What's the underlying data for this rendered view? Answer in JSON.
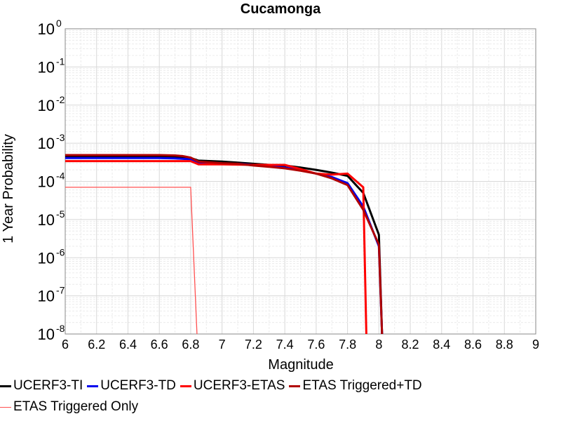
{
  "chart_data": {
    "type": "line",
    "title": "Cucamonga",
    "xlabel": "Magnitude",
    "ylabel": "1 Year Probability",
    "xlim": [
      6,
      9
    ],
    "ylim": [
      1e-08,
      1
    ],
    "yscale": "log",
    "grid": true,
    "legend_position": "bottom",
    "x_ticks": [
      "6",
      "6.2",
      "6.4",
      "6.6",
      "6.8",
      "7",
      "7.2",
      "7.4",
      "7.6",
      "7.8",
      "8",
      "8.2",
      "8.4",
      "8.6",
      "8.8",
      "9"
    ],
    "y_ticks": [
      {
        "base": "10",
        "exp": "0"
      },
      {
        "base": "10",
        "exp": "-1"
      },
      {
        "base": "10",
        "exp": "-2"
      },
      {
        "base": "10",
        "exp": "-3"
      },
      {
        "base": "10",
        "exp": "-4"
      },
      {
        "base": "10",
        "exp": "-5"
      },
      {
        "base": "10",
        "exp": "-6"
      },
      {
        "base": "10",
        "exp": "-7"
      },
      {
        "base": "10",
        "exp": "-8"
      }
    ],
    "series": [
      {
        "name": "UCERF3-TI",
        "color": "#000000",
        "width": 3,
        "x": [
          6.0,
          6.75,
          6.8,
          6.85,
          7.0,
          7.1,
          7.2,
          7.3,
          7.4,
          7.5,
          7.6,
          7.7,
          7.8,
          7.9,
          8.0,
          8.02
        ],
        "y": [
          0.00044,
          0.00044,
          0.00041,
          0.00035,
          0.00033,
          0.00031,
          0.00029,
          0.00027,
          0.00026,
          0.00023,
          0.0002,
          0.00017,
          0.00014,
          5e-05,
          4e-06,
          1e-08
        ]
      },
      {
        "name": "UCERF3-TD",
        "color": "#0000ee",
        "width": 3,
        "x": [
          6.0,
          6.6,
          6.7,
          6.8,
          6.85,
          7.0,
          7.1,
          7.2,
          7.3,
          7.4,
          7.5,
          7.6,
          7.7,
          7.8,
          7.9,
          8.0,
          8.02
        ],
        "y": [
          0.00041,
          0.00041,
          0.0004,
          0.00038,
          0.00031,
          0.00029,
          0.00029,
          0.00027,
          0.00025,
          0.00023,
          0.0002,
          0.00016,
          0.00013,
          9e-05,
          2.2e-05,
          2e-06,
          1e-08
        ]
      },
      {
        "name": "UCERF3-ETAS",
        "color": "#ff0000",
        "width": 3,
        "x": [
          6.0,
          6.8,
          6.85,
          7.0,
          7.2,
          7.3,
          7.4,
          7.5,
          7.6,
          7.7,
          7.8,
          7.9,
          7.92
        ],
        "y": [
          0.00034,
          0.00034,
          0.00028,
          0.00028,
          0.00027,
          0.00027,
          0.00027,
          0.00021,
          0.00016,
          0.00015,
          0.00016,
          7e-05,
          1e-08
        ]
      },
      {
        "name": "ETAS Triggered+TD",
        "color": "#b00000",
        "width": 3,
        "x": [
          6.0,
          6.6,
          6.7,
          6.75,
          6.8,
          6.85,
          7.0,
          7.1,
          7.2,
          7.3,
          7.4,
          7.5,
          7.6,
          7.7,
          7.8,
          7.9,
          8.0,
          8.02
        ],
        "y": [
          0.00049,
          0.00049,
          0.00048,
          0.00046,
          0.00042,
          0.00033,
          0.0003,
          0.00029,
          0.00026,
          0.00024,
          0.00022,
          0.00019,
          0.00016,
          0.00012,
          8e-05,
          1.8e-05,
          2.2e-06,
          1e-08
        ]
      },
      {
        "name": "ETAS Triggered Only",
        "color": "#ff5050",
        "width": 1.3,
        "x": [
          6.0,
          6.8,
          6.84
        ],
        "y": [
          7e-05,
          7e-05,
          1e-08
        ]
      }
    ]
  }
}
